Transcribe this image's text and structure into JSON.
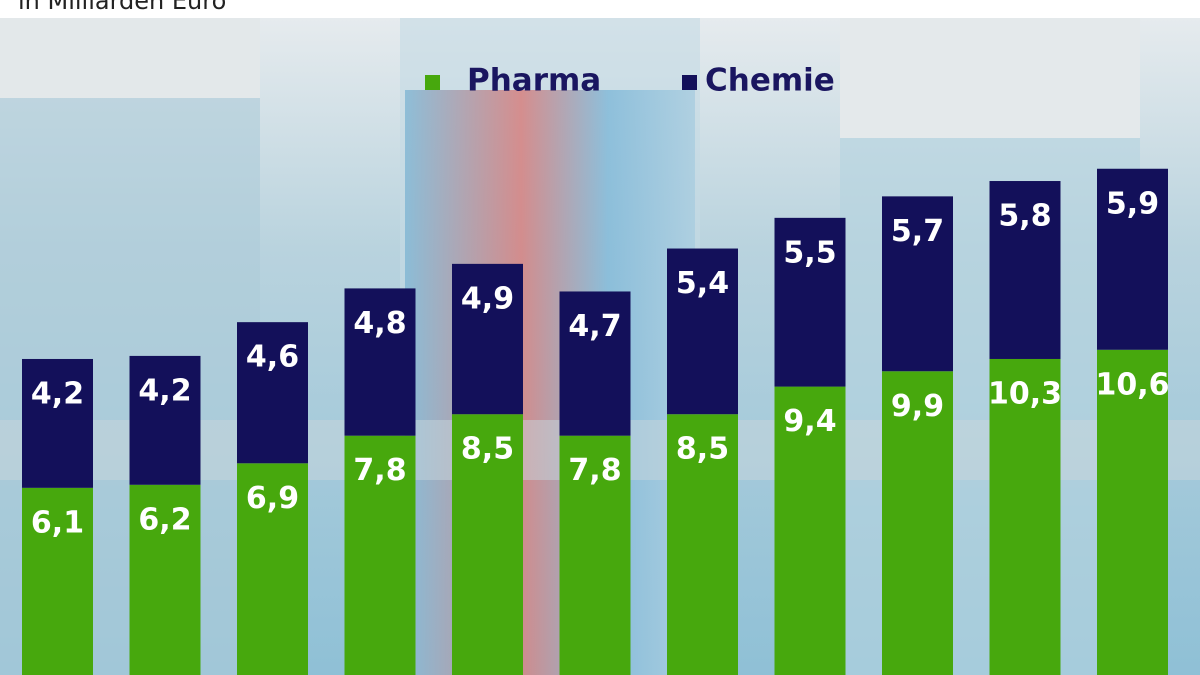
{
  "chart_data": {
    "type": "stacked_bar",
    "subtitle": "in Milliarden Euro",
    "categories": [
      null,
      null,
      null,
      null,
      null,
      null,
      null,
      null,
      null,
      null,
      null
    ],
    "series": [
      {
        "name": "Pharma",
        "color": "#47a80d",
        "values": [
          6.1,
          6.2,
          6.9,
          7.8,
          8.5,
          7.8,
          8.5,
          9.4,
          9.9,
          10.3,
          10.6
        ],
        "value_labels": [
          "6,1",
          "6,2",
          "6,9",
          "7,8",
          "8,5",
          "7,8",
          "8,5",
          "9,4",
          "9,9",
          "10,3",
          "10,6"
        ]
      },
      {
        "name": "Chemie",
        "color": "#13105a",
        "values": [
          4.2,
          4.2,
          4.6,
          4.8,
          4.9,
          4.7,
          5.4,
          5.5,
          5.7,
          5.8,
          5.9
        ],
        "value_labels": [
          "4,2",
          "4,2",
          "4,6",
          "4,8",
          "4,9",
          "4,7",
          "5,4",
          "5,5",
          "5,7",
          "5,8",
          "5,9"
        ]
      }
    ],
    "ylim": [
      0,
      22
    ],
    "legend": "top"
  }
}
